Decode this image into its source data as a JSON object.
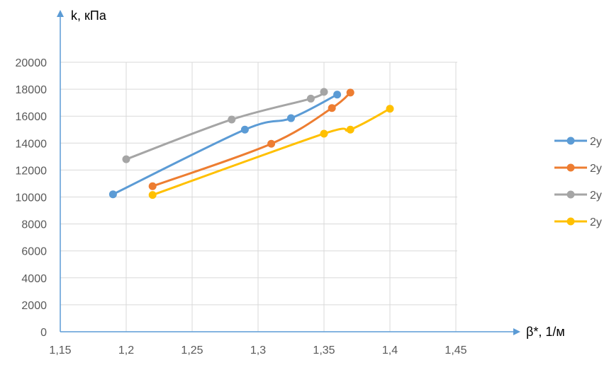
{
  "colors": {
    "series": [
      "#5B9BD5",
      "#ED7D31",
      "#A5A5A5",
      "#FFC000"
    ],
    "grid": "#D9D9D9",
    "axis": "#5B9BD5",
    "text": "#595959"
  },
  "chart_data": {
    "type": "line",
    "title": "",
    "xlabel": "β*, 1/м",
    "ylabel": "k, кПа",
    "xlim": [
      1.15,
      1.5
    ],
    "ylim": [
      0,
      20000
    ],
    "x_ticks": [
      1.15,
      1.2,
      1.25,
      1.3,
      1.35,
      1.4,
      1.45
    ],
    "x_tick_labels": [
      "1,15",
      "1,2",
      "1,25",
      "1,3",
      "1,35",
      "1,4",
      "1,45"
    ],
    "y_ticks": [
      0,
      2000,
      4000,
      6000,
      8000,
      10000,
      12000,
      14000,
      16000,
      18000,
      20000
    ],
    "y_tick_labels": [
      "0",
      "2000",
      "4000",
      "6000",
      "8000",
      "10000",
      "12000",
      "14000",
      "16000",
      "18000",
      "20000"
    ],
    "grid": true,
    "legend_position": "right",
    "series": [
      {
        "name": "2у",
        "points": [
          [
            1.19,
            10200
          ],
          [
            1.29,
            15000
          ],
          [
            1.325,
            15850
          ],
          [
            1.36,
            17600
          ]
        ]
      },
      {
        "name": "2у",
        "points": [
          [
            1.22,
            10800
          ],
          [
            1.31,
            13950
          ],
          [
            1.356,
            16600
          ],
          [
            1.37,
            17750
          ]
        ]
      },
      {
        "name": "2у",
        "points": [
          [
            1.2,
            12800
          ],
          [
            1.28,
            15750
          ],
          [
            1.34,
            17300
          ],
          [
            1.35,
            17800
          ]
        ]
      },
      {
        "name": "2у",
        "points": [
          [
            1.22,
            10150
          ],
          [
            1.35,
            14700
          ],
          [
            1.37,
            15000
          ],
          [
            1.4,
            16550
          ]
        ]
      }
    ]
  }
}
